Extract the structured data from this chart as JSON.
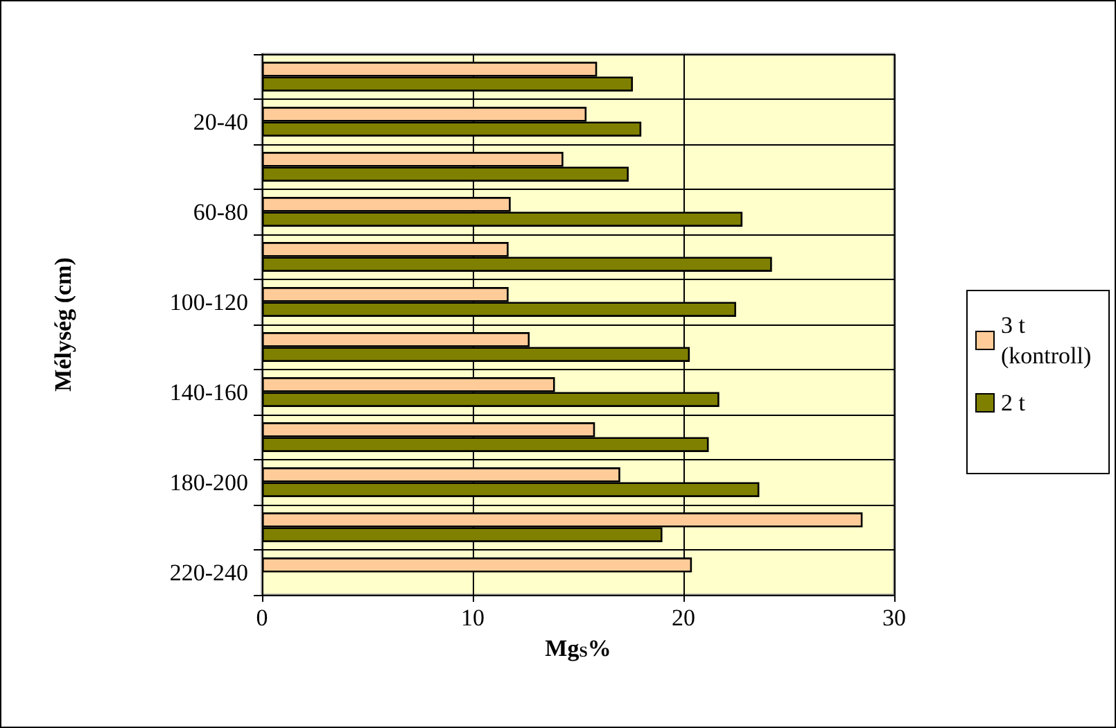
{
  "chart_data": {
    "type": "bar",
    "orientation": "horizontal",
    "xlabel": "Mg$_{S}$%",
    "ylabel": "Mélység (cm)",
    "categories": [
      null,
      "20-40",
      null,
      "60-80",
      null,
      "100-120",
      null,
      "140-160",
      null,
      "180-200",
      null,
      "220-240"
    ],
    "series": [
      {
        "name": "3 t (kontroll)",
        "color": "#ffcc99",
        "values": [
          15.9,
          15.4,
          14.3,
          11.8,
          11.7,
          11.7,
          12.7,
          13.9,
          15.8,
          17.0,
          28.5,
          20.4
        ]
      },
      {
        "name": "2 t",
        "color": "#808000",
        "values": [
          17.6,
          18.0,
          17.4,
          22.8,
          24.2,
          22.5,
          20.3,
          21.7,
          21.2,
          23.6,
          19.0,
          null
        ]
      }
    ],
    "xlim": [
      0,
      30
    ],
    "xticks": [
      0,
      10,
      20,
      30
    ],
    "grid": true,
    "legend": "right"
  }
}
